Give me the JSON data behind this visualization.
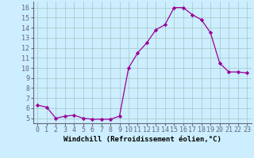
{
  "x": [
    0,
    1,
    2,
    3,
    4,
    5,
    6,
    7,
    8,
    9,
    10,
    11,
    12,
    13,
    14,
    15,
    16,
    17,
    18,
    19,
    20,
    21,
    22,
    23
  ],
  "y": [
    6.3,
    6.1,
    5.0,
    5.2,
    5.3,
    5.0,
    4.9,
    4.9,
    4.9,
    5.2,
    10.0,
    11.5,
    12.5,
    13.8,
    14.3,
    16.0,
    16.0,
    15.3,
    14.8,
    13.5,
    10.5,
    9.6,
    9.6,
    9.5
  ],
  "line_color": "#990099",
  "marker": "D",
  "marker_size": 2.2,
  "bg_color": "#cceeff",
  "grid_color": "#aacccc",
  "xlabel": "Windchill (Refroidissement éolien,°C)",
  "xlabel_fontsize": 6.5,
  "ylabel_ticks": [
    5,
    6,
    7,
    8,
    9,
    10,
    11,
    12,
    13,
    14,
    15,
    16
  ],
  "xlim": [
    -0.5,
    23.5
  ],
  "ylim": [
    4.5,
    16.6
  ],
  "tick_fontsize": 6.0,
  "spine_color": "#666677",
  "linewidth": 0.9
}
